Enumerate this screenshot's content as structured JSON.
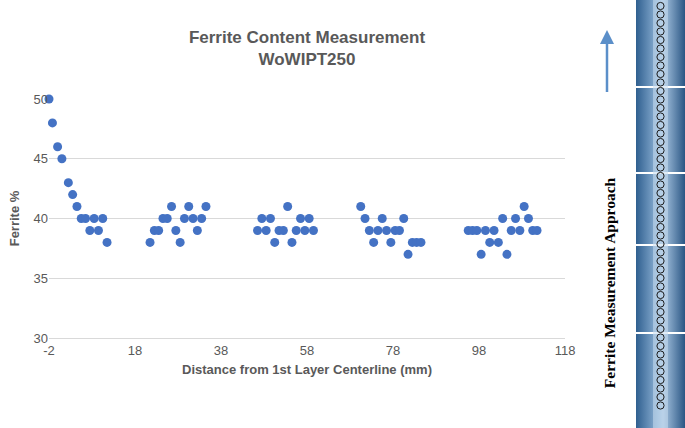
{
  "chart_data": {
    "type": "scatter",
    "title": "Ferrite Content Measurement",
    "subtitle": "WoWIPT250",
    "x_label": "Distance from 1st Layer Centerline (mm)",
    "y_label": "Ferrite %",
    "x": [
      -2,
      -1.2,
      0,
      1,
      2.5,
      3.5,
      4.5,
      5.5,
      6.5,
      7.5,
      8.5,
      9.5,
      10.5,
      11.5,
      21.5,
      22.5,
      23.5,
      24.5,
      25.5,
      26.5,
      27.5,
      28.5,
      29.5,
      30.5,
      31.5,
      32.5,
      33.5,
      34.5,
      46.5,
      47.5,
      48.5,
      49.5,
      50.5,
      51.5,
      52.5,
      53.5,
      54.5,
      55.5,
      56.5,
      57.5,
      58.5,
      59.5,
      70.5,
      71.5,
      72.5,
      73.5,
      74.5,
      75.5,
      76.5,
      77.5,
      78.5,
      79.5,
      80.5,
      81.5,
      82.5,
      83.5,
      84.5,
      95.5,
      96.5,
      97.5,
      98.5,
      99.5,
      100.5,
      101.5,
      102.5,
      103.5,
      104.5,
      105.5,
      106.5,
      107.5,
      108.5,
      109.5,
      110.5,
      111.5
    ],
    "values": [
      50,
      48,
      46,
      45,
      43,
      42,
      41,
      40,
      40,
      39,
      40,
      39,
      40,
      38,
      38,
      39,
      39,
      40,
      40,
      41,
      39,
      38,
      40,
      41,
      40,
      39,
      40,
      41,
      39,
      40,
      39,
      40,
      38,
      39,
      39,
      41,
      38,
      39,
      40,
      39,
      40,
      39,
      41,
      40,
      39,
      38,
      39,
      40,
      39,
      38,
      39,
      39,
      40,
      37,
      38,
      38,
      38,
      39,
      39,
      39,
      37,
      39,
      38,
      39,
      38,
      40,
      37,
      39,
      40,
      39,
      41,
      40,
      39,
      39
    ],
    "color": "#4472c4",
    "marker": "circle",
    "xlim": [
      -2,
      118
    ],
    "xticks": [
      -2,
      18,
      38,
      58,
      78,
      98,
      118
    ],
    "ylim": [
      30,
      50
    ],
    "yticks": [
      30,
      35,
      40,
      45,
      50
    ],
    "grid": true,
    "annotations": [
      "Ferrite Measurement Approach"
    ]
  }
}
